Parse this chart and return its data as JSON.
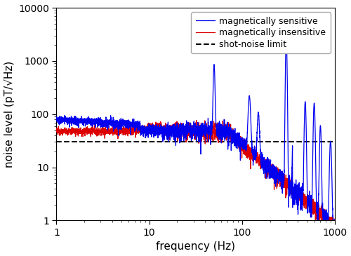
{
  "title": "",
  "xlabel": "frequency (Hz)",
  "ylabel": "noise level (pT/√Hz)",
  "xlim": [
    1,
    1000
  ],
  "ylim": [
    1,
    10000
  ],
  "shot_noise_level": 30,
  "blue_label": "magnetically sensitive",
  "red_label": "magnetically insensitive",
  "dashed_label": "shot-noise limit",
  "blue_color": "#0000ee",
  "red_color": "#dd0000",
  "dashed_color": "#000000",
  "background_color": "#ffffff",
  "legend_fontsize": 9,
  "axis_fontsize": 11
}
